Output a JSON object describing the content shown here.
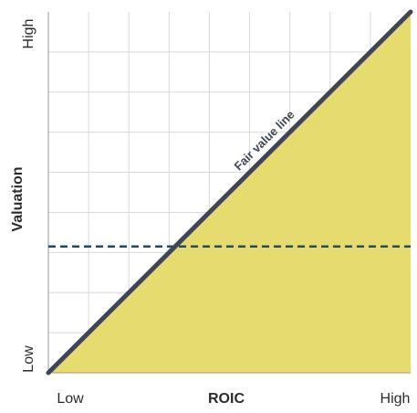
{
  "chart_data": {
    "type": "line",
    "title": "",
    "xlabel": "ROIC",
    "ylabel": "Valuation",
    "x_ticks": [
      "Low",
      "High"
    ],
    "y_ticks": [
      "Low",
      "High"
    ],
    "xlim": [
      0,
      1
    ],
    "ylim": [
      0,
      1
    ],
    "grid": true,
    "series": [
      {
        "name": "Fair value line",
        "x": [
          0,
          1
        ],
        "y": [
          0,
          1
        ]
      }
    ],
    "reference_lines": [
      {
        "orientation": "horizontal",
        "y": 0.35,
        "style": "dashed"
      }
    ],
    "shaded_region": {
      "description": "below fair value line",
      "color": "#e6db6e"
    },
    "colors": {
      "fill": "#e6db6e",
      "line": "#3e4652",
      "dashed": "#1f4e63",
      "grid": "#d9d9d9"
    }
  }
}
